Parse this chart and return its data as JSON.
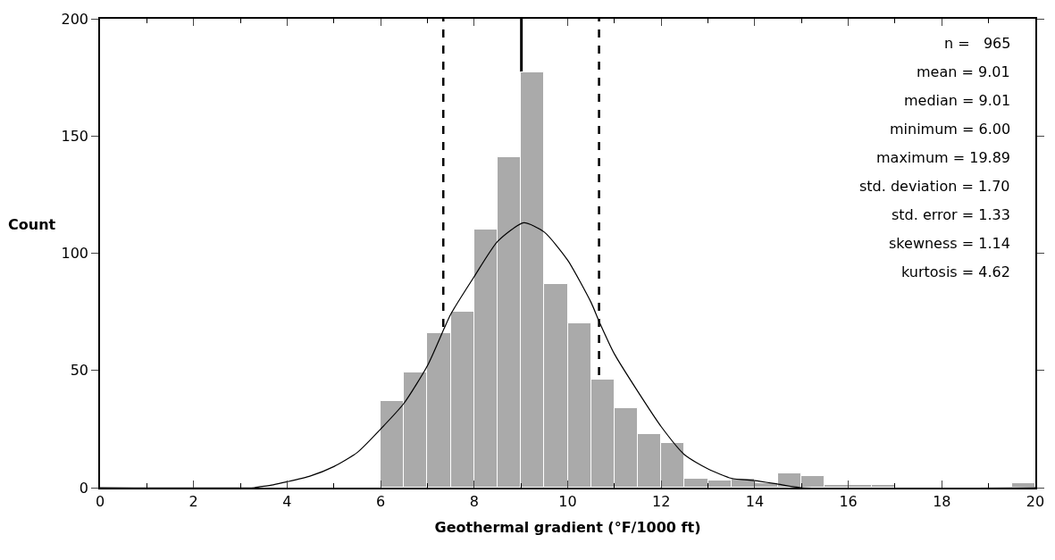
{
  "chart_data": {
    "type": "histogram",
    "xlabel": "Geothermal gradient (°F/1000 ft)",
    "ylabel": "Count",
    "bins": [
      6,
      6.5,
      7,
      7.5,
      8,
      8.5,
      9,
      9.5,
      10,
      10.5,
      11,
      11.5,
      12,
      12.5,
      13,
      13.5,
      14,
      14.5,
      15,
      15.5,
      16,
      16.5,
      17,
      17.5,
      18,
      18.5,
      19,
      19.5,
      20
    ],
    "series": [
      {
        "color": "#aaaaaa",
        "values": [
          37,
          49,
          66,
          75,
          110,
          141,
          177,
          87,
          70,
          46,
          34,
          23,
          19,
          4,
          3,
          4,
          2,
          6,
          5,
          1,
          1,
          1,
          0,
          0,
          0,
          0,
          0,
          2
        ]
      },
      {
        "type": "line",
        "color": "#000000",
        "x": [
          0,
          3.3,
          3.4,
          3.7,
          4,
          4.5,
          5,
          5.5,
          6,
          6.5,
          7,
          7.36,
          7.5,
          8,
          8.5,
          9.06,
          9.5,
          10,
          10.5,
          10.67,
          11,
          11.5,
          12,
          12.5,
          13,
          13.5,
          14,
          14.5,
          15,
          20
        ],
        "values": [
          0,
          0,
          0.3,
          1.2,
          2.5,
          5,
          9,
          15,
          25,
          36,
          52,
          68,
          74,
          90,
          105,
          113,
          109,
          97,
          79,
          71,
          57,
          41,
          26,
          14,
          8,
          4,
          3,
          1.5,
          0,
          0
        ]
      }
    ],
    "ref_lines": [
      {
        "axis": "x",
        "value": 9.01,
        "color": "#000000",
        "line_style": "solid"
      },
      {
        "axis": "x",
        "value": 7.34,
        "color": "#000000",
        "line_style": "dashed"
      },
      {
        "axis": "x",
        "value": 10.67,
        "color": "#000000",
        "line_style": "dashed"
      }
    ],
    "annotations": [
      "n =   965",
      "mean = 9.01",
      "median = 9.01",
      "minimum = 6.00",
      "maximum = 19.89",
      "std. deviation = 1.70",
      "std. error = 1.33",
      "skewness = 1.14",
      "kurtosis = 4.62"
    ],
    "xlim": [
      0,
      20
    ],
    "xticks": [
      0,
      2,
      4,
      6,
      8,
      10,
      12,
      14,
      16,
      18,
      20
    ],
    "ylim": [
      0,
      200
    ],
    "yticks": [
      0,
      50,
      100,
      150,
      200
    ]
  }
}
